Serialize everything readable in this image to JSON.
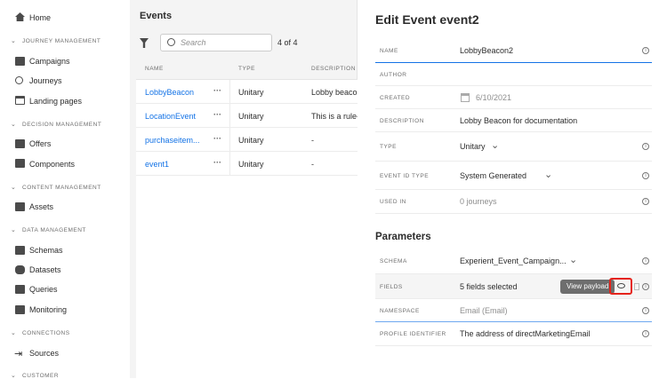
{
  "sidebar": {
    "home": "Home",
    "sections": [
      {
        "title": "JOURNEY MANAGEMENT",
        "items": [
          "Campaigns",
          "Journeys",
          "Landing pages"
        ]
      },
      {
        "title": "DECISION MANAGEMENT",
        "items": [
          "Offers",
          "Components"
        ]
      },
      {
        "title": "CONTENT MANAGEMENT",
        "items": [
          "Assets"
        ]
      },
      {
        "title": "DATA MANAGEMENT",
        "items": [
          "Schemas",
          "Datasets",
          "Queries",
          "Monitoring"
        ]
      },
      {
        "title": "CONNECTIONS",
        "items": [
          "Sources"
        ]
      },
      {
        "title": "CUSTOMER",
        "items": []
      }
    ]
  },
  "events": {
    "title": "Events",
    "search_placeholder": "Search",
    "count": "4 of 4",
    "columns": [
      "NAME",
      "TYPE",
      "DESCRIPTION"
    ],
    "rows": [
      {
        "name": "LobbyBeacon",
        "type": "Unitary",
        "description": "Lobby beacon"
      },
      {
        "name": "LocationEvent",
        "type": "Unitary",
        "description": "This is a rule-b"
      },
      {
        "name": "purchaseitem...",
        "type": "Unitary",
        "description": "-"
      },
      {
        "name": "event1",
        "type": "Unitary",
        "description": "-"
      }
    ]
  },
  "edit": {
    "title": "Edit Event event2",
    "fields": [
      {
        "label": "NAME",
        "value": "LobbyBeacon2"
      },
      {
        "label": "AUTHOR",
        "value": ""
      },
      {
        "label": "CREATED",
        "value": "6/10/2021"
      },
      {
        "label": "DESCRIPTION",
        "value": "Lobby Beacon for documentation"
      },
      {
        "label": "TYPE",
        "value": "Unitary"
      },
      {
        "label": "EVENT ID TYPE",
        "value": "System Generated"
      },
      {
        "label": "USED IN",
        "value": "0 journeys"
      }
    ],
    "parameters_title": "Parameters",
    "params": [
      {
        "label": "SCHEMA",
        "value": "Experient_Event_Campaign..."
      },
      {
        "label": "FIELDS",
        "value": "5 fields selected"
      },
      {
        "label": "NAMESPACE",
        "value": "Email (Email)"
      },
      {
        "label": "PROFILE IDENTIFIER",
        "value": "The address of directMarketingEmail"
      }
    ],
    "tooltip": "View payload"
  },
  "colors": {
    "link": "#1473e6",
    "highlight": "#e5231b",
    "tooltip": "#6e6e6e"
  }
}
